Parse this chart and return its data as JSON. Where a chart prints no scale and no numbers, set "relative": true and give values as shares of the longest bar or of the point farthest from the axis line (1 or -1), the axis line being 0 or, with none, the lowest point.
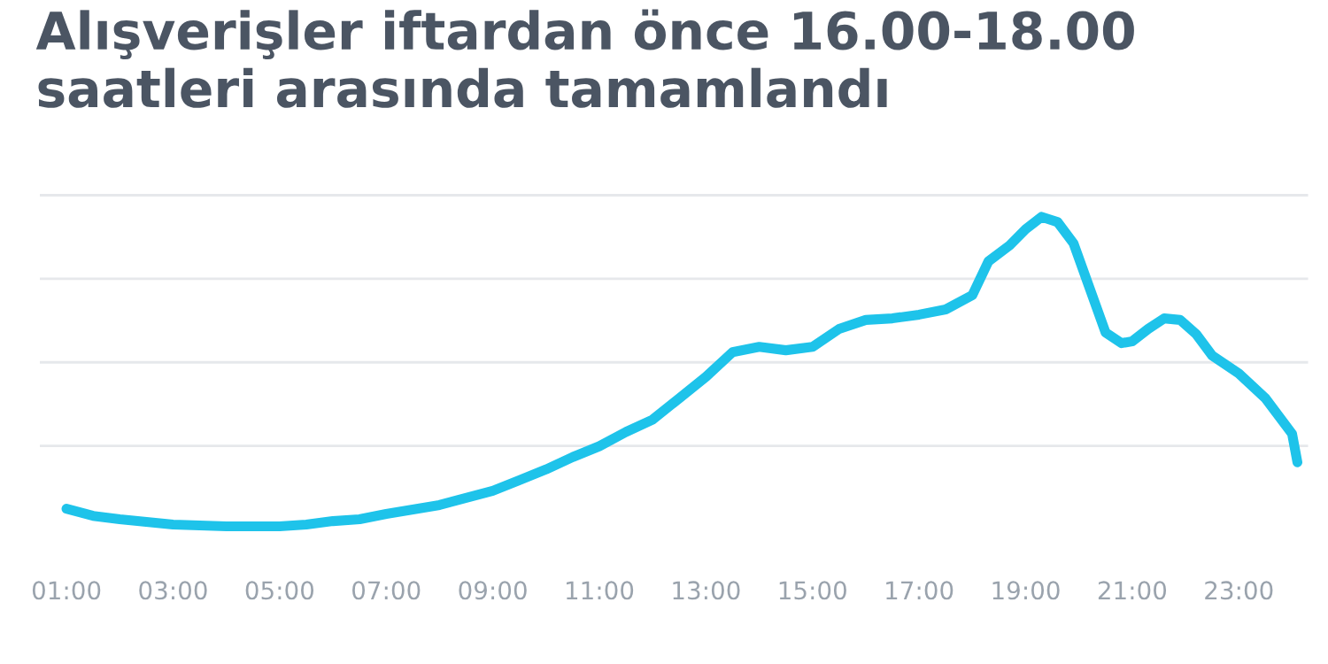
{
  "chart_data": {
    "type": "line",
    "title": "Alışverişler iftardan önce 16.00-18.00\nsaatleri arasında tamamlandı",
    "relative": true,
    "grid": "y",
    "marker": "none",
    "line_style": "solid",
    "x": [
      1,
      1.5,
      2,
      3,
      4,
      5,
      5.5,
      6,
      6.5,
      7,
      8,
      9,
      9.5,
      10,
      10.5,
      11,
      11.5,
      12,
      12.5,
      13,
      13.5,
      14,
      14.5,
      15,
      15.5,
      16,
      16.5,
      17,
      17.5,
      18,
      18.3,
      18.7,
      19,
      19.3,
      19.6,
      19.9,
      20.2,
      20.5,
      20.8,
      21,
      21.3,
      21.6,
      21.9,
      22.2,
      22.5,
      23,
      23.5,
      24,
      24.1
    ],
    "series": [
      {
        "color": "#1ec3ea",
        "values": [
          0.057,
          0.034,
          0.023,
          0.006,
          0,
          0,
          0.006,
          0.017,
          0.023,
          0.04,
          0.069,
          0.115,
          0.149,
          0.184,
          0.224,
          0.259,
          0.305,
          0.345,
          0.414,
          0.483,
          0.563,
          0.58,
          0.569,
          0.58,
          0.638,
          0.667,
          0.672,
          0.684,
          0.701,
          0.747,
          0.856,
          0.908,
          0.96,
          1.0,
          0.983,
          0.914,
          0.77,
          0.626,
          0.592,
          0.598,
          0.638,
          0.672,
          0.667,
          0.621,
          0.552,
          0.494,
          0.414,
          0.299,
          0.207
        ]
      }
    ],
    "xlim": [
      0.5,
      24.3
    ],
    "xticks": [
      {
        "value": 1,
        "label": "01:00"
      },
      {
        "value": 3,
        "label": "03:00"
      },
      {
        "value": 5,
        "label": "05:00"
      },
      {
        "value": 7,
        "label": "07:00"
      },
      {
        "value": 9,
        "label": "09:00"
      },
      {
        "value": 11,
        "label": "11:00"
      },
      {
        "value": 13,
        "label": "13:00"
      },
      {
        "value": 15,
        "label": "15:00"
      },
      {
        "value": 17,
        "label": "17:00"
      },
      {
        "value": 19,
        "label": "19:00"
      },
      {
        "value": 21,
        "label": "21:00"
      },
      {
        "value": 23,
        "label": "23:00"
      }
    ]
  }
}
